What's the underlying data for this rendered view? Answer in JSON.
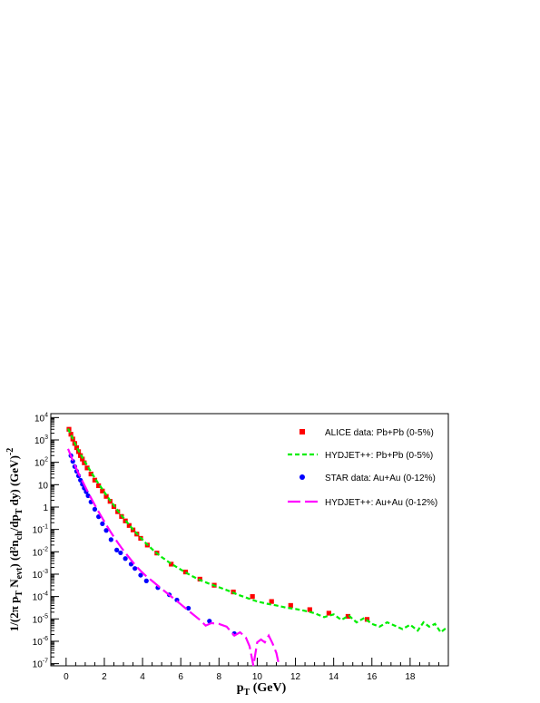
{
  "chart_data": {
    "type": "scatter",
    "title": "",
    "xlabel": "p_T (GeV)",
    "ylabel": "1/(2π p_T N_evt) (d²n_ch/dp_T dy) (GeV)^-2",
    "xlim": [
      -0.8,
      20
    ],
    "ylim": [
      8e-08,
      15000
    ],
    "y_scale": "log",
    "grid": false,
    "legend_position": "top-right",
    "x_ticks": [
      0,
      2,
      4,
      6,
      8,
      10,
      12,
      14,
      16,
      18
    ],
    "x_tick_labels": [
      "0",
      "2",
      "4",
      "6",
      "8",
      "10",
      "12",
      "14",
      "16",
      "18"
    ],
    "y_ticks": [
      1e-07,
      1e-06,
      1e-05,
      0.0001,
      0.001,
      0.01,
      0.1,
      1,
      10,
      100,
      1000,
      10000
    ],
    "y_tick_labels": [
      {
        "base": "10",
        "exp": "-7"
      },
      {
        "base": "10",
        "exp": "-6"
      },
      {
        "base": "10",
        "exp": "-5"
      },
      {
        "base": "10",
        "exp": "-4"
      },
      {
        "base": "10",
        "exp": "-3"
      },
      {
        "base": "10",
        "exp": "-2"
      },
      {
        "base": "10",
        "exp": "-1"
      },
      {
        "base": "1",
        "exp": ""
      },
      {
        "base": "10",
        "exp": ""
      },
      {
        "base": "10",
        "exp": "2"
      },
      {
        "base": "10",
        "exp": "3"
      },
      {
        "base": "10",
        "exp": "4"
      }
    ],
    "series": [
      {
        "name": "ALICE data: Pb+Pb (0-5%)",
        "kind": "markers",
        "marker": "square",
        "color": "#ff0000",
        "x": [
          0.15,
          0.25,
          0.35,
          0.45,
          0.55,
          0.65,
          0.75,
          0.85,
          0.95,
          1.1,
          1.3,
          1.5,
          1.7,
          1.9,
          2.1,
          2.3,
          2.5,
          2.7,
          2.9,
          3.1,
          3.3,
          3.5,
          3.7,
          3.9,
          4.25,
          4.75,
          5.5,
          6.25,
          7.0,
          7.75,
          8.75,
          9.75,
          10.75,
          11.75,
          12.75,
          13.75,
          14.75,
          15.75
        ],
        "y": [
          3000,
          1800,
          1100,
          700,
          450,
          300,
          200,
          140,
          95,
          56,
          30,
          16,
          9,
          5.2,
          3.0,
          1.8,
          1.05,
          0.62,
          0.38,
          0.24,
          0.15,
          0.095,
          0.062,
          0.04,
          0.02,
          0.0088,
          0.0028,
          0.00125,
          0.0006,
          0.00032,
          0.00016,
          0.0001,
          6e-05,
          4e-05,
          2.6e-05,
          1.8e-05,
          1.3e-05,
          9.5e-06
        ]
      },
      {
        "name": "HYDJET++: Pb+Pb (0-5%)",
        "kind": "line",
        "dash": "5,3",
        "color": "#00ee00",
        "x": [
          0.1,
          0.3,
          0.5,
          0.7,
          0.9,
          1.1,
          1.3,
          1.5,
          1.7,
          1.9,
          2.1,
          2.3,
          2.5,
          2.7,
          2.9,
          3.1,
          3.3,
          3.5,
          3.7,
          3.9,
          4.2,
          4.6,
          5.0,
          5.5,
          6.0,
          6.5,
          7.0,
          7.5,
          8.0,
          8.5,
          9.0,
          9.5,
          10.0,
          10.5,
          11.0,
          11.5,
          12.0,
          12.5,
          13.0,
          13.5,
          14.0,
          14.4,
          14.8,
          15.2,
          15.6,
          16.0,
          16.4,
          16.8,
          17.2,
          17.6,
          18.0,
          18.4,
          18.7,
          19.0,
          19.3,
          19.6,
          19.9
        ],
        "y": [
          3200,
          1400,
          600,
          280,
          140,
          72,
          38,
          20,
          11,
          6.2,
          3.5,
          2.0,
          1.2,
          0.7,
          0.42,
          0.26,
          0.16,
          0.1,
          0.065,
          0.042,
          0.023,
          0.011,
          0.0058,
          0.0029,
          0.0016,
          0.0009,
          0.00055,
          0.00037,
          0.00026,
          0.00018,
          0.00012,
          8.5e-05,
          6e-05,
          4.8e-05,
          4e-05,
          3.2e-05,
          2.8e-05,
          2.3e-05,
          1.8e-05,
          1.2e-05,
          1.6e-05,
          9e-06,
          1.4e-05,
          7e-06,
          1.1e-05,
          6e-06,
          4.5e-06,
          7e-06,
          5e-06,
          3.5e-06,
          5.5e-06,
          3e-06,
          7e-06,
          4.5e-06,
          6e-06,
          2.5e-06,
          4e-06
        ]
      },
      {
        "name": "STAR data: Au+Au (0-12%)",
        "kind": "markers",
        "marker": "circle",
        "color": "#0000ff",
        "x": [
          0.25,
          0.35,
          0.45,
          0.55,
          0.65,
          0.75,
          0.85,
          0.95,
          1.05,
          1.15,
          1.3,
          1.5,
          1.7,
          1.9,
          2.1,
          2.35,
          2.65,
          2.85,
          3.1,
          3.4,
          3.6,
          3.9,
          4.2,
          4.8,
          5.4,
          5.8,
          6.4,
          7.5,
          8.8
        ],
        "y": [
          200,
          110,
          65,
          40,
          25,
          16,
          10.5,
          7,
          4.8,
          3.2,
          1.7,
          0.8,
          0.37,
          0.18,
          0.09,
          0.035,
          0.012,
          0.009,
          0.005,
          0.0028,
          0.0018,
          0.0009,
          0.0005,
          0.00025,
          0.00012,
          7e-05,
          3e-05,
          8e-06,
          2.2e-06
        ]
      },
      {
        "name": "HYDJET++: Au+Au (0-12%)",
        "kind": "line",
        "dash": "14,5",
        "color": "#ff00ff",
        "x": [
          0.1,
          0.3,
          0.5,
          0.7,
          0.9,
          1.1,
          1.3,
          1.5,
          1.7,
          1.9,
          2.1,
          2.3,
          2.5,
          2.7,
          2.9,
          3.1,
          3.3,
          3.5,
          3.7,
          3.9,
          4.2,
          4.5,
          5.0,
          5.5,
          6.0,
          6.5,
          7.0,
          7.3,
          7.6,
          8.0,
          8.4,
          8.8,
          9.1,
          9.4,
          9.6,
          9.8,
          10.0,
          10.2,
          10.4,
          10.6,
          10.8,
          11.0,
          11.15
        ],
        "y": [
          400,
          150,
          60,
          26,
          12,
          5.5,
          2.6,
          1.25,
          0.62,
          0.31,
          0.16,
          0.085,
          0.046,
          0.026,
          0.015,
          0.009,
          0.0055,
          0.0034,
          0.0021,
          0.0014,
          0.0008,
          0.0005,
          0.00022,
          0.0001,
          4.5e-05,
          2e-05,
          9e-06,
          5e-06,
          6.5e-06,
          6e-06,
          4.5e-06,
          1.8e-06,
          2.5e-06,
          1.5e-06,
          6e-07,
          8e-08,
          9e-07,
          1.2e-06,
          9e-07,
          1.8e-06,
          8e-07,
          3e-07,
          8e-08
        ]
      }
    ]
  }
}
